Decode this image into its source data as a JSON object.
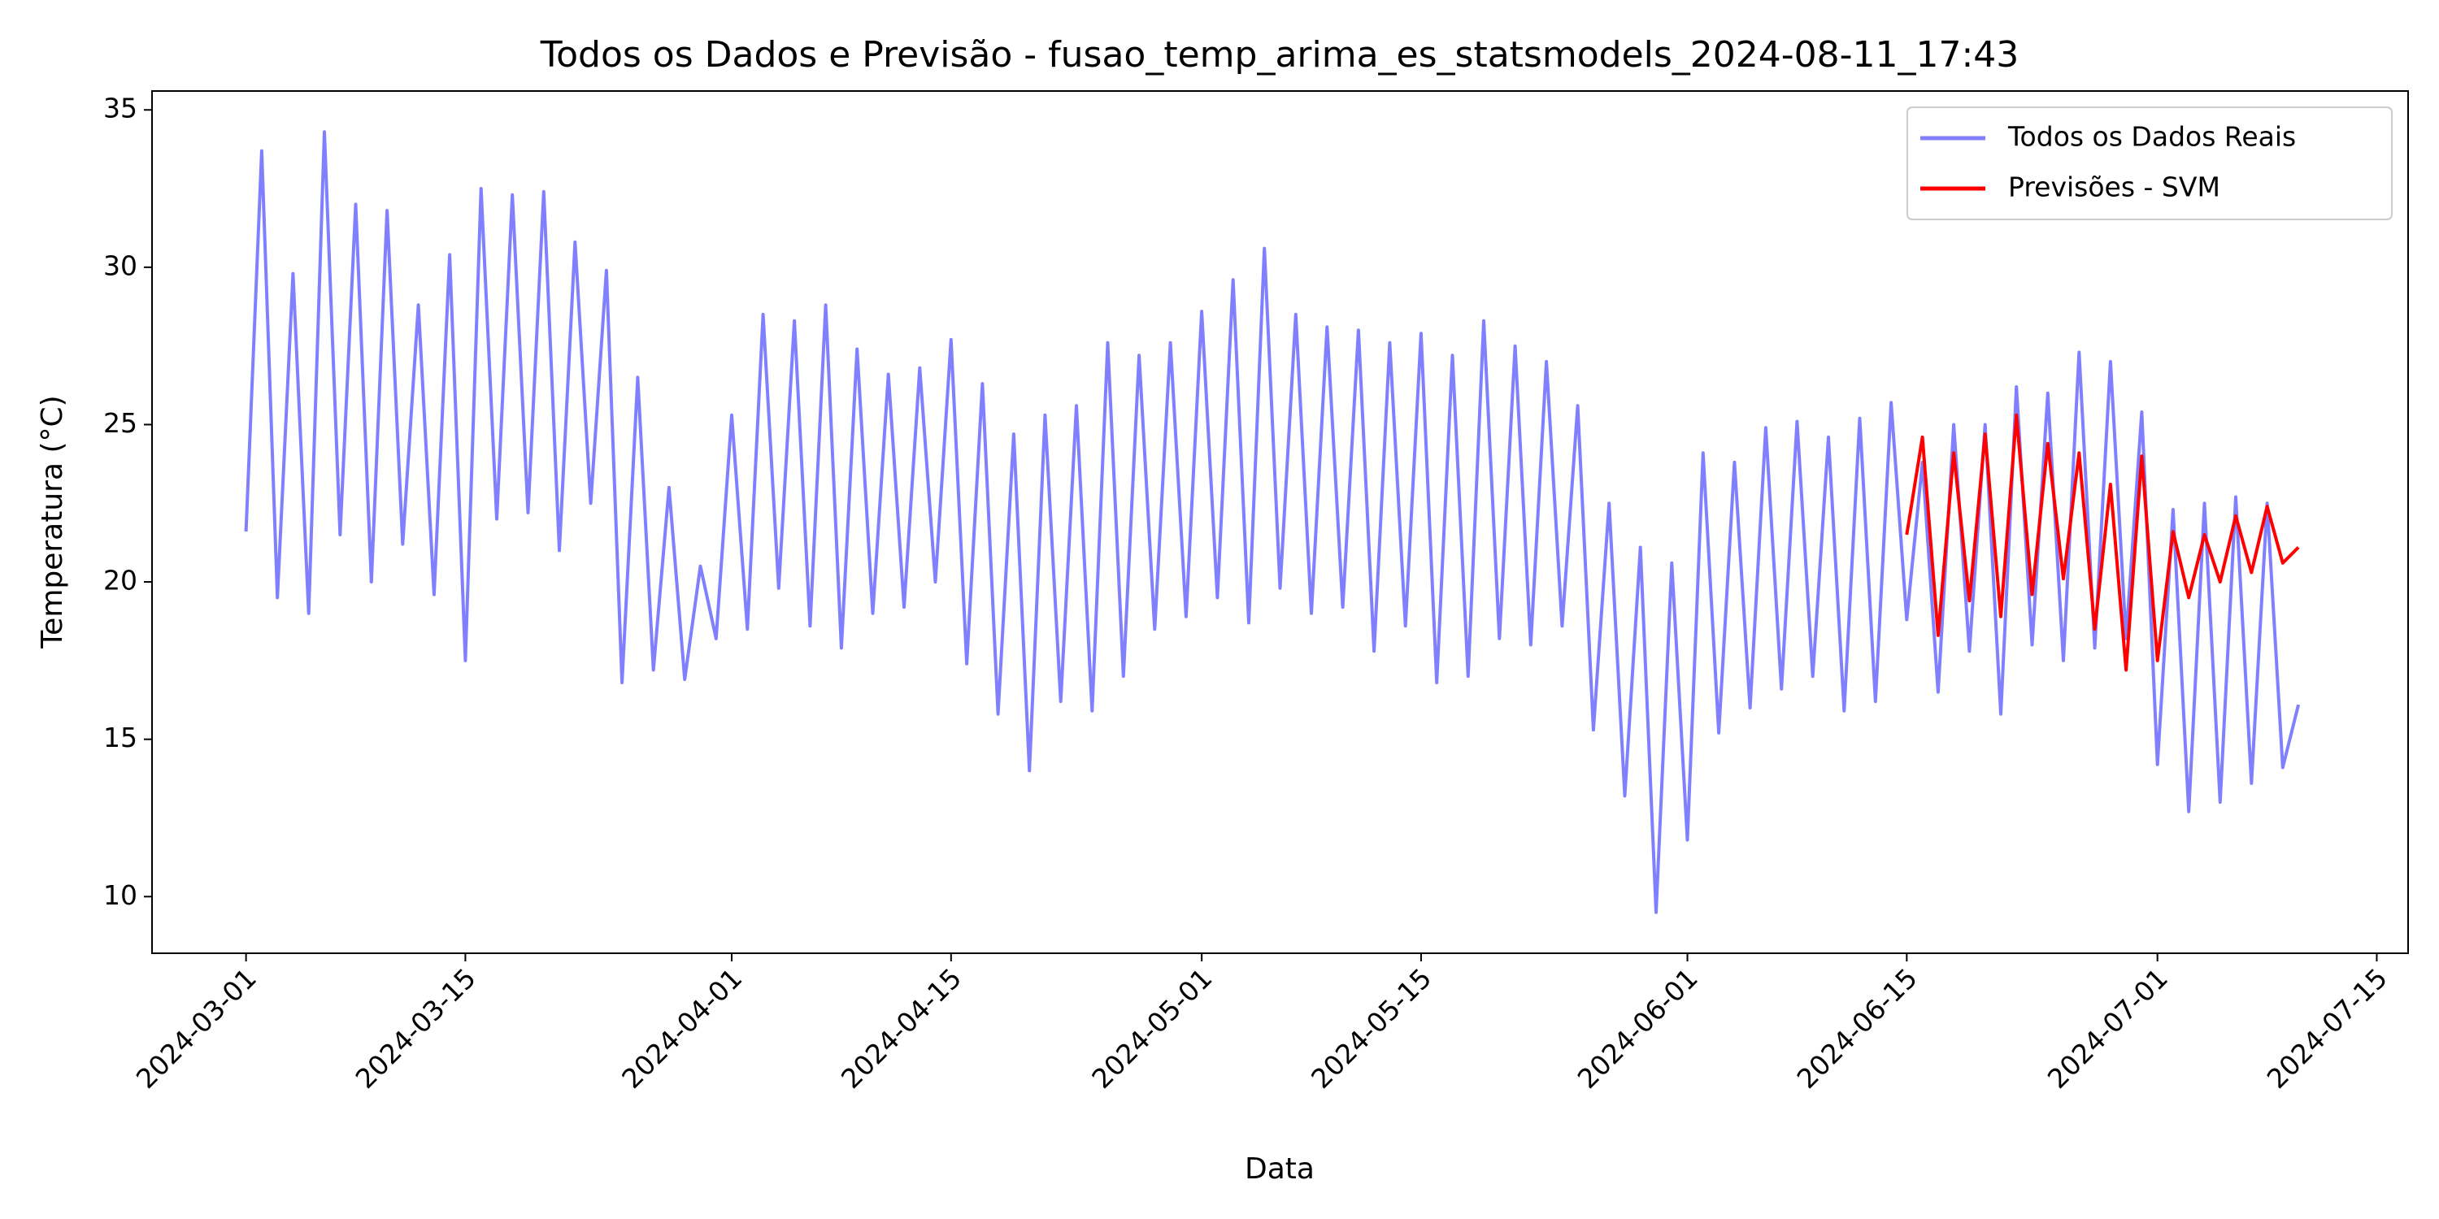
{
  "chart_data": {
    "type": "line",
    "title": "Todos os Dados e Previsão - fusao_temp_arima_es_statsmodels_2024-08-11_17:43",
    "x_label": "Data",
    "y_label": "Temperatura (°C)",
    "xlim": [
      "2024-02-24",
      "2024-07-17"
    ],
    "xticks": [
      "2024-03-01",
      "2024-03-15",
      "2024-04-01",
      "2024-04-15",
      "2024-05-01",
      "2024-05-15",
      "2024-06-01",
      "2024-06-15",
      "2024-07-01",
      "2024-07-15"
    ],
    "ylim": [
      8.2,
      35.6
    ],
    "yticks": [
      10,
      15,
      20,
      25,
      30,
      35
    ],
    "grid": false,
    "legend": "upper right",
    "series": [
      {
        "name": "Todos os Dados Reais",
        "color": "#8080ff",
        "x": [
          "2024-03-01",
          "2024-03-02",
          "2024-03-03",
          "2024-03-04",
          "2024-03-05",
          "2024-03-06",
          "2024-03-07",
          "2024-03-08",
          "2024-03-09",
          "2024-03-10",
          "2024-03-11",
          "2024-03-12",
          "2024-03-13",
          "2024-03-14",
          "2024-03-15",
          "2024-03-16",
          "2024-03-17",
          "2024-03-18",
          "2024-03-19",
          "2024-03-20",
          "2024-03-21",
          "2024-03-22",
          "2024-03-23",
          "2024-03-24",
          "2024-03-25",
          "2024-03-26",
          "2024-03-27",
          "2024-03-28",
          "2024-03-29",
          "2024-03-30",
          "2024-03-31",
          "2024-04-01",
          "2024-04-02",
          "2024-04-03",
          "2024-04-04",
          "2024-04-05",
          "2024-04-06",
          "2024-04-07",
          "2024-04-08",
          "2024-04-09",
          "2024-04-10",
          "2024-04-11",
          "2024-04-12",
          "2024-04-13",
          "2024-04-14",
          "2024-04-15",
          "2024-04-16",
          "2024-04-17",
          "2024-04-18",
          "2024-04-19",
          "2024-04-20",
          "2024-04-21",
          "2024-04-22",
          "2024-04-23",
          "2024-04-24",
          "2024-04-25",
          "2024-04-26",
          "2024-04-27",
          "2024-04-28",
          "2024-04-29",
          "2024-04-30",
          "2024-05-01",
          "2024-05-02",
          "2024-05-03",
          "2024-05-04",
          "2024-05-05",
          "2024-05-06",
          "2024-05-07",
          "2024-05-08",
          "2024-05-09",
          "2024-05-10",
          "2024-05-11",
          "2024-05-12",
          "2024-05-13",
          "2024-05-14",
          "2024-05-15",
          "2024-05-16",
          "2024-05-17",
          "2024-05-18",
          "2024-05-19",
          "2024-05-20",
          "2024-05-21",
          "2024-05-22",
          "2024-05-23",
          "2024-05-24",
          "2024-05-25",
          "2024-05-26",
          "2024-05-27",
          "2024-05-28",
          "2024-05-29",
          "2024-05-30",
          "2024-05-31",
          "2024-06-01",
          "2024-06-02",
          "2024-06-03",
          "2024-06-04",
          "2024-06-05",
          "2024-06-06",
          "2024-06-07",
          "2024-06-08",
          "2024-06-09",
          "2024-06-10",
          "2024-06-11",
          "2024-06-12",
          "2024-06-13",
          "2024-06-14",
          "2024-06-15",
          "2024-06-16",
          "2024-06-17",
          "2024-06-18",
          "2024-06-19",
          "2024-06-20",
          "2024-06-21",
          "2024-06-22",
          "2024-06-23",
          "2024-06-24",
          "2024-06-25",
          "2024-06-26",
          "2024-06-27",
          "2024-06-28",
          "2024-06-29",
          "2024-06-30",
          "2024-07-01",
          "2024-07-02",
          "2024-07-03",
          "2024-07-04",
          "2024-07-05",
          "2024-07-06",
          "2024-07-07",
          "2024-07-08",
          "2024-07-09",
          "2024-07-10"
        ],
        "values": [
          21.6,
          33.7,
          19.5,
          29.8,
          19.0,
          34.3,
          21.5,
          32.0,
          20.0,
          31.8,
          21.2,
          28.8,
          19.6,
          30.4,
          17.5,
          32.5,
          22.0,
          32.3,
          22.2,
          32.4,
          21.0,
          30.8,
          22.5,
          29.9,
          16.8,
          26.5,
          17.2,
          23.0,
          16.9,
          20.5,
          18.2,
          25.3,
          18.5,
          28.5,
          19.8,
          28.3,
          18.6,
          28.8,
          17.9,
          27.4,
          19.0,
          26.6,
          19.2,
          26.8,
          20.0,
          27.7,
          17.4,
          26.3,
          15.8,
          24.7,
          14.0,
          25.3,
          16.2,
          25.6,
          15.9,
          27.6,
          17.0,
          27.2,
          18.5,
          27.6,
          18.9,
          28.6,
          19.5,
          29.6,
          18.7,
          30.6,
          19.8,
          28.5,
          19.0,
          28.1,
          19.2,
          28.0,
          17.8,
          27.6,
          18.6,
          27.9,
          16.8,
          27.2,
          17.0,
          28.3,
          18.2,
          27.5,
          18.0,
          27.0,
          18.6,
          25.6,
          15.3,
          22.5,
          13.2,
          21.1,
          9.5,
          20.6,
          11.8,
          24.1,
          15.2,
          23.8,
          16.0,
          24.9,
          16.6,
          25.1,
          17.0,
          24.6,
          15.9,
          25.2,
          16.2,
          25.7,
          18.8,
          23.8,
          16.5,
          25.0,
          17.8,
          25.0,
          15.8,
          26.2,
          18.0,
          26.0,
          17.5,
          27.3,
          17.9,
          27.0,
          18.2,
          25.4,
          14.2,
          22.3,
          12.7,
          22.5,
          13.0,
          22.7,
          13.6,
          22.5,
          14.1,
          16.1
        ]
      },
      {
        "name": "Previsões - SVM",
        "color": "#ff0000",
        "x": [
          "2024-06-15",
          "2024-06-16",
          "2024-06-17",
          "2024-06-18",
          "2024-06-19",
          "2024-06-20",
          "2024-06-21",
          "2024-06-22",
          "2024-06-23",
          "2024-06-24",
          "2024-06-25",
          "2024-06-26",
          "2024-06-27",
          "2024-06-28",
          "2024-06-29",
          "2024-06-30",
          "2024-07-01",
          "2024-07-02",
          "2024-07-03",
          "2024-07-04",
          "2024-07-05",
          "2024-07-06",
          "2024-07-07",
          "2024-07-08",
          "2024-07-09",
          "2024-07-10"
        ],
        "values": [
          21.5,
          24.6,
          18.3,
          24.1,
          19.4,
          24.7,
          18.9,
          25.3,
          19.6,
          24.4,
          20.1,
          24.1,
          18.5,
          23.1,
          17.2,
          24.0,
          17.5,
          21.6,
          19.5,
          21.5,
          20.0,
          22.1,
          20.3,
          22.4,
          20.6,
          21.1
        ]
      }
    ]
  }
}
